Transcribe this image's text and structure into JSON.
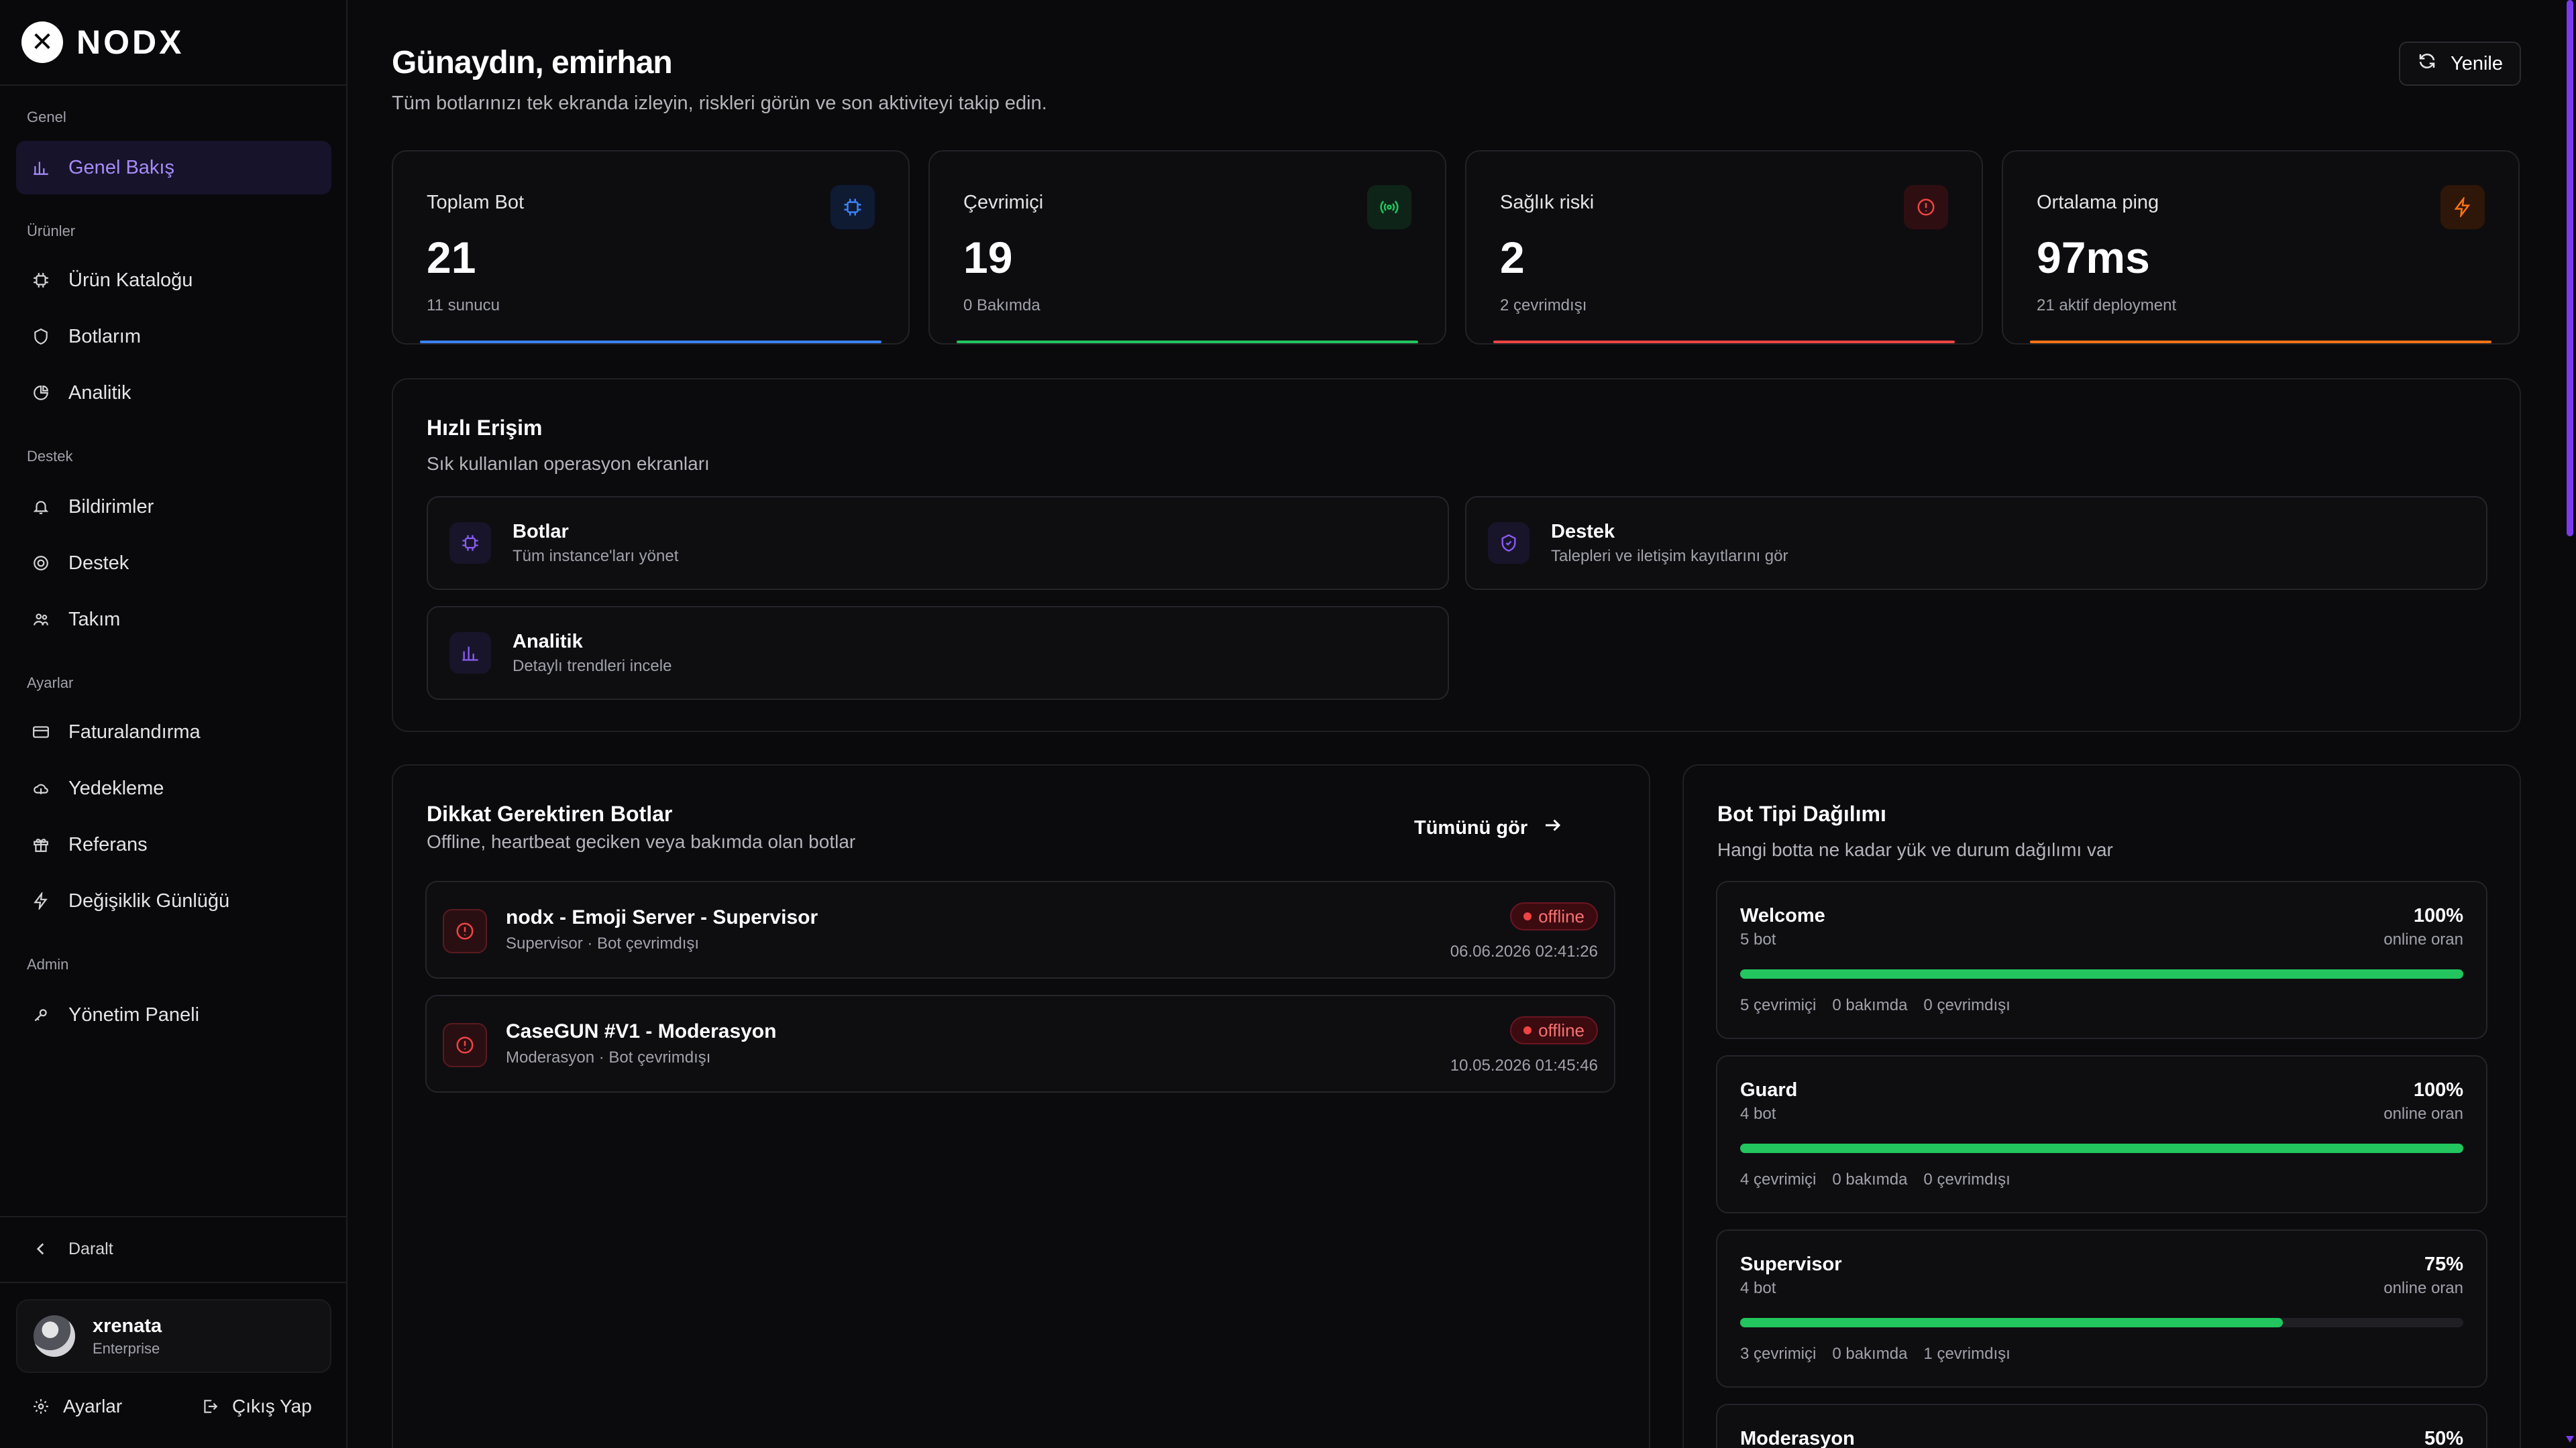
{
  "brand": {
    "name": "NODX",
    "logo_glyph": "✕"
  },
  "sidebar": {
    "sections": [
      {
        "label": "Genel",
        "items": [
          {
            "label": "Genel Bakış",
            "icon": "bar-chart-icon",
            "active": true
          }
        ]
      },
      {
        "label": "Ürünler",
        "items": [
          {
            "label": "Ürün Kataloğu",
            "icon": "cpu-icon"
          },
          {
            "label": "Botlarım",
            "icon": "shield-icon"
          },
          {
            "label": "Analitik",
            "icon": "pie-chart-icon"
          }
        ]
      },
      {
        "label": "Destek",
        "items": [
          {
            "label": "Bildirimler",
            "icon": "bell-icon"
          },
          {
            "label": "Destek",
            "icon": "lifebuoy-icon"
          },
          {
            "label": "Takım",
            "icon": "users-icon"
          }
        ]
      },
      {
        "label": "Ayarlar",
        "items": [
          {
            "label": "Faturalandırma",
            "icon": "credit-card-icon"
          },
          {
            "label": "Yedekleme",
            "icon": "cloud-icon"
          },
          {
            "label": "Referans",
            "icon": "gift-icon"
          },
          {
            "label": "Değişiklik Günlüğü",
            "icon": "zap-icon"
          }
        ]
      },
      {
        "label": "Admin",
        "items": [
          {
            "label": "Yönetim Paneli",
            "icon": "key-icon"
          }
        ]
      }
    ],
    "collapse_label": "Daralt",
    "user": {
      "name": "xrenata",
      "plan": "Enterprise"
    },
    "settings_label": "Ayarlar",
    "logout_label": "Çıkış Yap"
  },
  "header": {
    "title": "Günaydın, emirhan",
    "subtitle": "Tüm botlarınızı tek ekranda izleyin, riskleri görün ve son aktiviteyi takip edin.",
    "refresh_label": "Yenile"
  },
  "stats": [
    {
      "label": "Toplam Bot",
      "value": "21",
      "note": "11 sunucu",
      "icon": "cpu-icon",
      "color": "#3b82f6",
      "icon_bg": "#0f1a33"
    },
    {
      "label": "Çevrimiçi",
      "value": "19",
      "note": "0 Bakımda",
      "icon": "radio-icon",
      "color": "#22c55e",
      "icon_bg": "#0e2418"
    },
    {
      "label": "Sağlık riski",
      "value": "2",
      "note": "2 çevrimdışı",
      "icon": "alert-circle-icon",
      "color": "#ef4444",
      "icon_bg": "#2f0e11"
    },
    {
      "label": "Ortalama ping",
      "value": "97ms",
      "note": "21 aktif deployment",
      "icon": "zap-icon",
      "color": "#f97316",
      "icon_bg": "#2e1708"
    }
  ],
  "quick_access": {
    "title": "Hızlı Erişim",
    "subtitle": "Sık kullanılan operasyon ekranları",
    "items": [
      {
        "title": "Botlar",
        "desc": "Tüm instance'ları yönet",
        "icon": "cpu-icon"
      },
      {
        "title": "Destek",
        "desc": "Talepleri ve iletişim kayıtlarını gör",
        "icon": "shield-icon"
      },
      {
        "title": "Analitik",
        "desc": "Detaylı trendleri incele",
        "icon": "bar-chart-icon"
      }
    ]
  },
  "attention": {
    "title": "Dikkat Gerektiren Botlar",
    "subtitle": "Offline, heartbeat geciken veya bakımda olan botlar",
    "see_all_label": "Tümünü gör",
    "bots": [
      {
        "name": "nodx - Emoji Server - Supervisor",
        "meta": "Supervisor · Bot çevrimdışı",
        "status": "offline",
        "time": "06.06.2026 02:41:26"
      },
      {
        "name": "CaseGUN #V1 - Moderasyon",
        "meta": "Moderasyon · Bot çevrimdışı",
        "status": "offline",
        "time": "10.05.2026 01:45:46"
      }
    ]
  },
  "distribution": {
    "title": "Bot Tipi Dağılımı",
    "subtitle": "Hangi botta ne kadar yük ve durum dağılımı var",
    "pct_label": "online oran",
    "types": [
      {
        "name": "Welcome",
        "count": "5 bot",
        "pct": "100%",
        "ratio": 1.0,
        "online": "5 çevrimiçi",
        "maint": "0 bakımda",
        "offline": "0 çevrimdışı"
      },
      {
        "name": "Guard",
        "count": "4 bot",
        "pct": "100%",
        "ratio": 1.0,
        "online": "4 çevrimiçi",
        "maint": "0 bakımda",
        "offline": "0 çevrimdışı"
      },
      {
        "name": "Supervisor",
        "count": "4 bot",
        "pct": "75%",
        "ratio": 0.75,
        "online": "3 çevrimiçi",
        "maint": "0 bakımda",
        "offline": "1 çevrimdışı"
      },
      {
        "name": "Moderasyon",
        "count": "",
        "pct": "50%",
        "ratio": 0.5,
        "online": "",
        "maint": "",
        "offline": ""
      }
    ]
  }
}
